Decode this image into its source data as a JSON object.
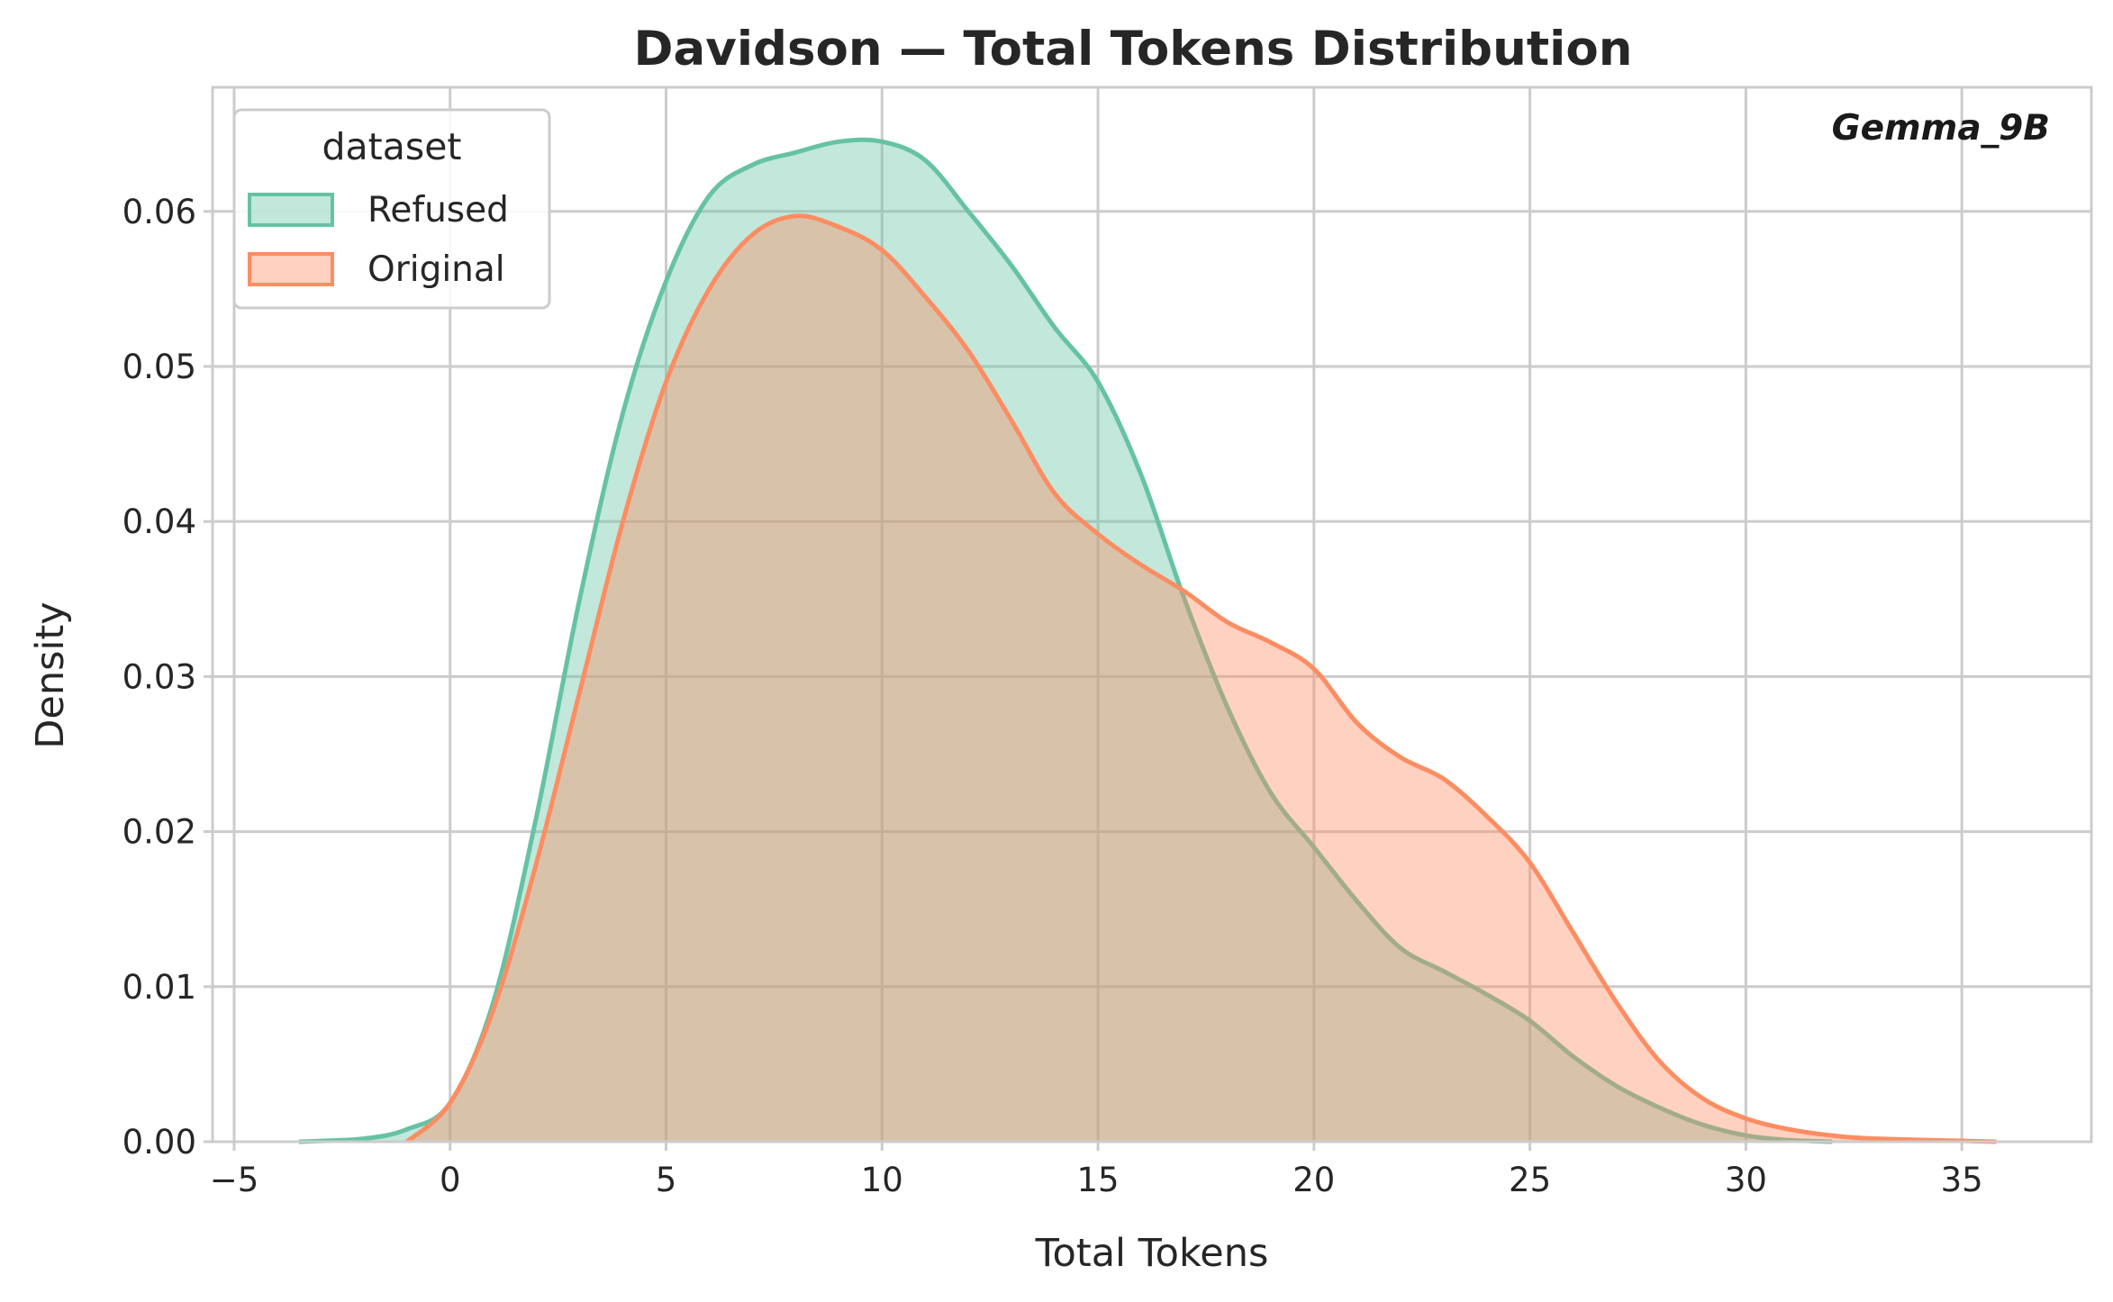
{
  "chart_data": {
    "type": "area",
    "title": "Davidson — Total Tokens Distribution",
    "xlabel": "Total Tokens",
    "ylabel": "Density",
    "annotation": "Gemma_9B",
    "xlim": [
      -5.5,
      38.0
    ],
    "ylim": [
      0.0,
      0.068
    ],
    "xticks": [
      -5,
      0,
      5,
      10,
      15,
      20,
      25,
      30,
      35
    ],
    "yticks": [
      0.0,
      0.01,
      0.02,
      0.03,
      0.04,
      0.05,
      0.06
    ],
    "xtick_labels": [
      "−5",
      "0",
      "5",
      "10",
      "15",
      "20",
      "25",
      "30",
      "35"
    ],
    "ytick_labels": [
      "0.00",
      "0.01",
      "0.02",
      "0.03",
      "0.04",
      "0.05",
      "0.06"
    ],
    "grid": true,
    "legend": {
      "title": "dataset",
      "placement": "top-left"
    },
    "series": [
      {
        "name": "Refused",
        "color": "#66c2a5",
        "x": [
          -3.5,
          -2,
          -1,
          0,
          1,
          2,
          3,
          4,
          5,
          6,
          7,
          8,
          9,
          10,
          11,
          12,
          13,
          14,
          15,
          16,
          17,
          18,
          19,
          20,
          21,
          22,
          23,
          24,
          25,
          26,
          27,
          28,
          29,
          30,
          31,
          32
        ],
        "y": [
          0.0,
          0.0002,
          0.0008,
          0.0025,
          0.009,
          0.021,
          0.035,
          0.047,
          0.0555,
          0.061,
          0.063,
          0.0638,
          0.0645,
          0.0645,
          0.0633,
          0.06,
          0.0565,
          0.0525,
          0.049,
          0.043,
          0.035,
          0.028,
          0.0225,
          0.019,
          0.0155,
          0.0125,
          0.011,
          0.0095,
          0.0078,
          0.0055,
          0.0036,
          0.0022,
          0.0011,
          0.0004,
          0.0001,
          0.0
        ]
      },
      {
        "name": "Original",
        "color": "#fc8d62",
        "x": [
          -1,
          0,
          1,
          2,
          3,
          4,
          5,
          6,
          7,
          8,
          9,
          10,
          11,
          12,
          13,
          14,
          15,
          16,
          17,
          18,
          19,
          20,
          21,
          22,
          23,
          24,
          25,
          26,
          27,
          28,
          29,
          30,
          31,
          32,
          33,
          35.8
        ],
        "y": [
          0.0,
          0.0025,
          0.0085,
          0.018,
          0.029,
          0.04,
          0.049,
          0.055,
          0.0585,
          0.0597,
          0.059,
          0.0575,
          0.0545,
          0.051,
          0.0465,
          0.0418,
          0.0392,
          0.0372,
          0.0355,
          0.0335,
          0.0322,
          0.0305,
          0.027,
          0.0248,
          0.0234,
          0.021,
          0.018,
          0.0135,
          0.009,
          0.0052,
          0.0028,
          0.0015,
          0.0008,
          0.0004,
          0.0002,
          0.0
        ]
      }
    ]
  }
}
